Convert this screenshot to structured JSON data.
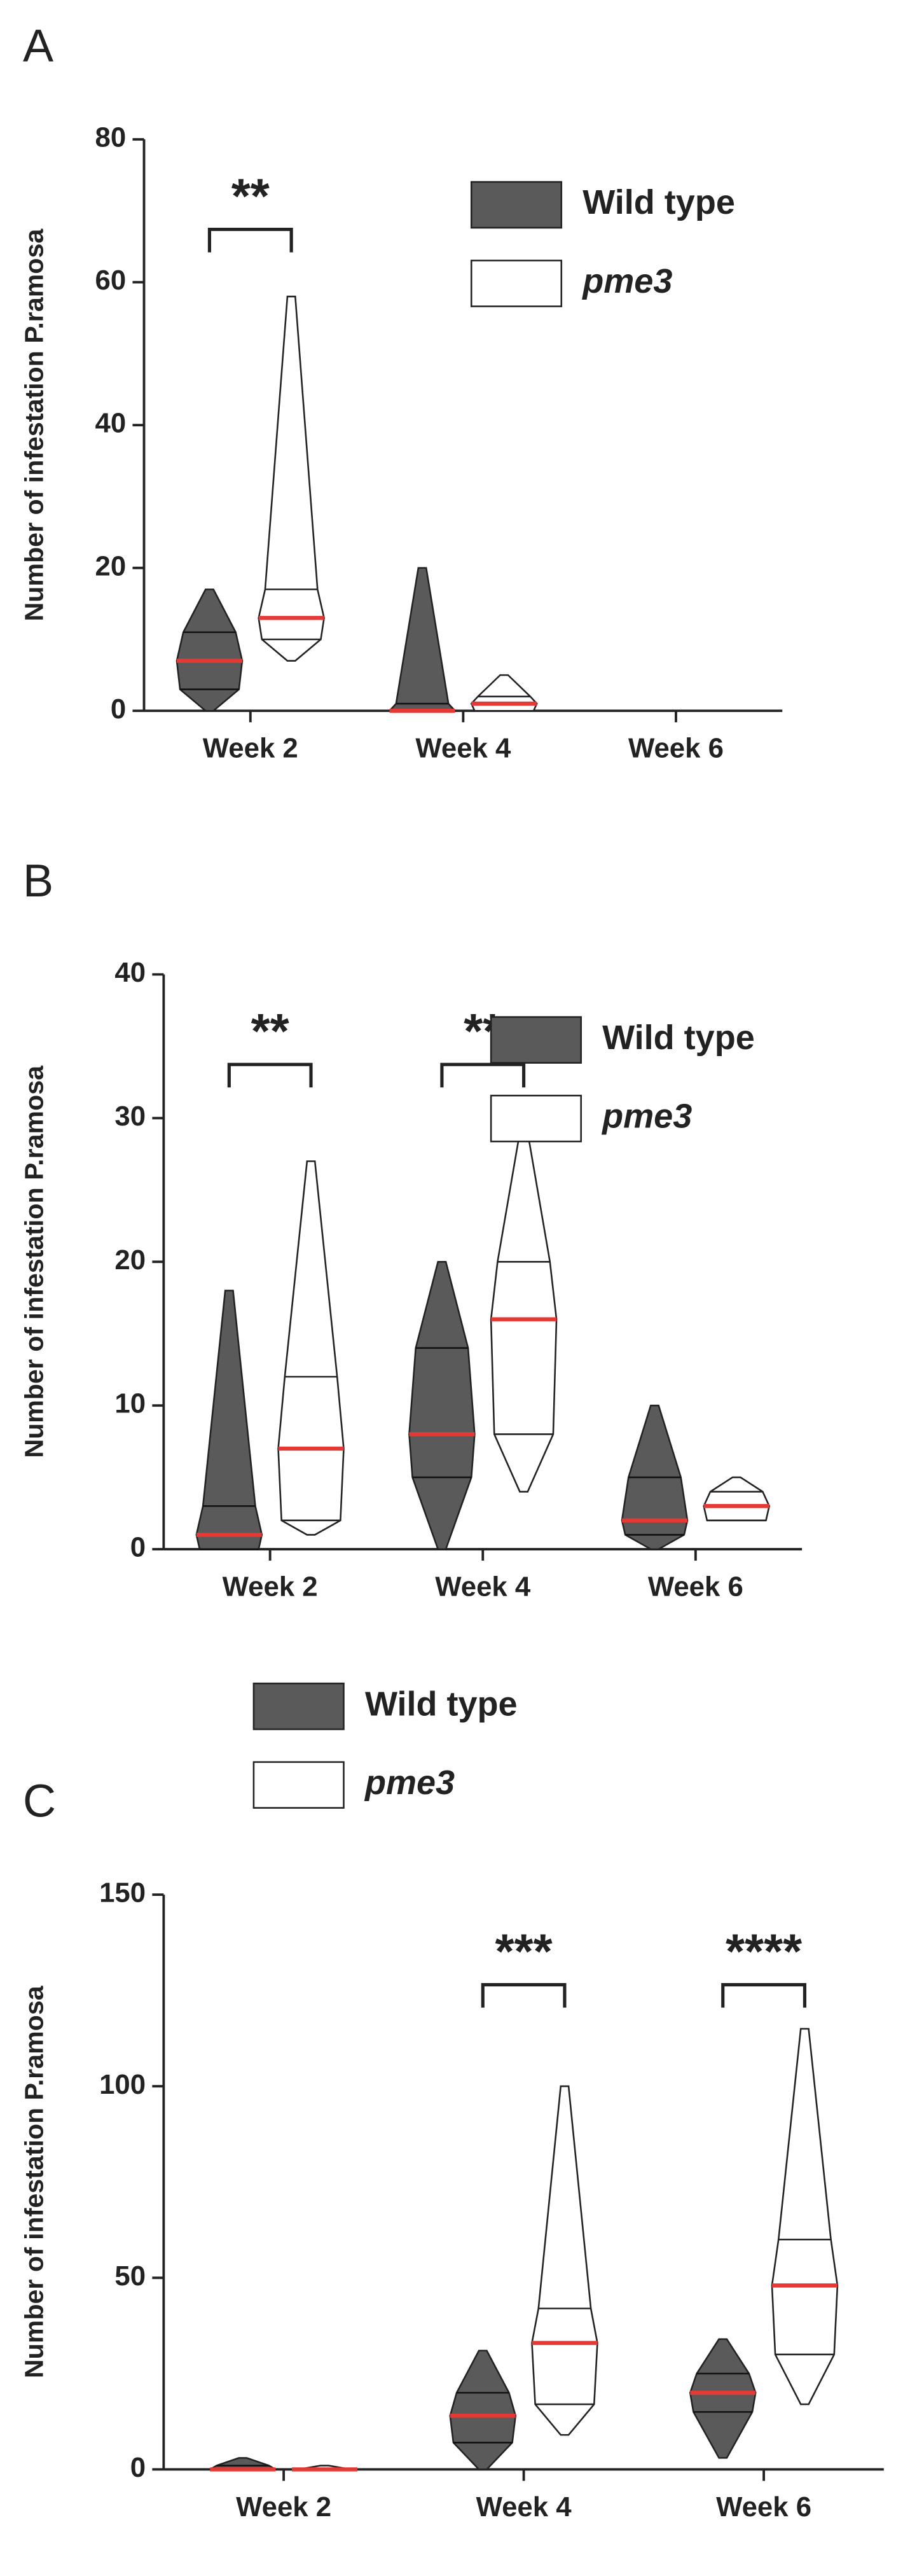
{
  "chart_data": [
    {
      "type": "violin",
      "panel": "A",
      "ylabel": "Number of infestation P.ramosa",
      "categories": [
        "Week 2",
        "Week 4",
        "Week 6"
      ],
      "ylim": [
        0,
        80
      ],
      "yticks": [
        0,
        20,
        40,
        60,
        80
      ],
      "legend": "upper right",
      "significance": [
        "**",
        null,
        null
      ],
      "series": [
        {
          "name": "Wild type",
          "color": "#5a5a5a",
          "min": [
            0,
            0,
            null
          ],
          "q1": [
            3,
            0,
            null
          ],
          "median": [
            7,
            0,
            null
          ],
          "q3": [
            11,
            1,
            null
          ],
          "max": [
            17,
            20,
            null
          ]
        },
        {
          "name": "pme3",
          "color": "#ffffff",
          "min": [
            7,
            0,
            null
          ],
          "q1": [
            10,
            0,
            null
          ],
          "median": [
            13,
            1,
            null
          ],
          "q3": [
            17,
            2,
            null
          ],
          "max": [
            58,
            5,
            null
          ]
        }
      ]
    },
    {
      "type": "violin",
      "panel": "B",
      "ylabel": "Number of infestation P.ramosa",
      "categories": [
        "Week 2",
        "Week 4",
        "Week 6"
      ],
      "ylim": [
        0,
        40
      ],
      "yticks": [
        0,
        10,
        20,
        30,
        40
      ],
      "legend": "upper right",
      "significance": [
        "**",
        "**",
        null
      ],
      "series": [
        {
          "name": "Wild type",
          "color": "#5a5a5a",
          "min": [
            0,
            0,
            0
          ],
          "q1": [
            0,
            5,
            1
          ],
          "median": [
            1,
            8,
            2
          ],
          "q3": [
            3,
            14,
            5
          ],
          "max": [
            18,
            20,
            10
          ]
        },
        {
          "name": "pme3",
          "color": "#ffffff",
          "min": [
            1,
            4,
            2
          ],
          "q1": [
            2,
            8,
            2
          ],
          "median": [
            7,
            16,
            3
          ],
          "q3": [
            12,
            20,
            4
          ],
          "max": [
            27,
            29,
            5
          ]
        }
      ]
    },
    {
      "type": "violin",
      "panel": "C",
      "ylabel": "Number of infestation P.ramosa",
      "categories": [
        "Week 2",
        "Week 4",
        "Week 6"
      ],
      "ylim": [
        0,
        150
      ],
      "yticks": [
        0,
        50,
        100,
        150
      ],
      "legend": "upper left",
      "significance": [
        null,
        "***",
        "****"
      ],
      "series": [
        {
          "name": "Wild type",
          "color": "#5a5a5a",
          "min": [
            0,
            0,
            3
          ],
          "q1": [
            0,
            7,
            15
          ],
          "median": [
            0,
            14,
            20
          ],
          "q3": [
            1,
            20,
            25
          ],
          "max": [
            3,
            31,
            34
          ]
        },
        {
          "name": "pme3",
          "color": "#ffffff",
          "min": [
            0,
            9,
            17
          ],
          "q1": [
            0,
            17,
            30
          ],
          "median": [
            0,
            33,
            48
          ],
          "q3": [
            0,
            42,
            60
          ],
          "max": [
            1,
            100,
            115
          ]
        }
      ]
    }
  ]
}
